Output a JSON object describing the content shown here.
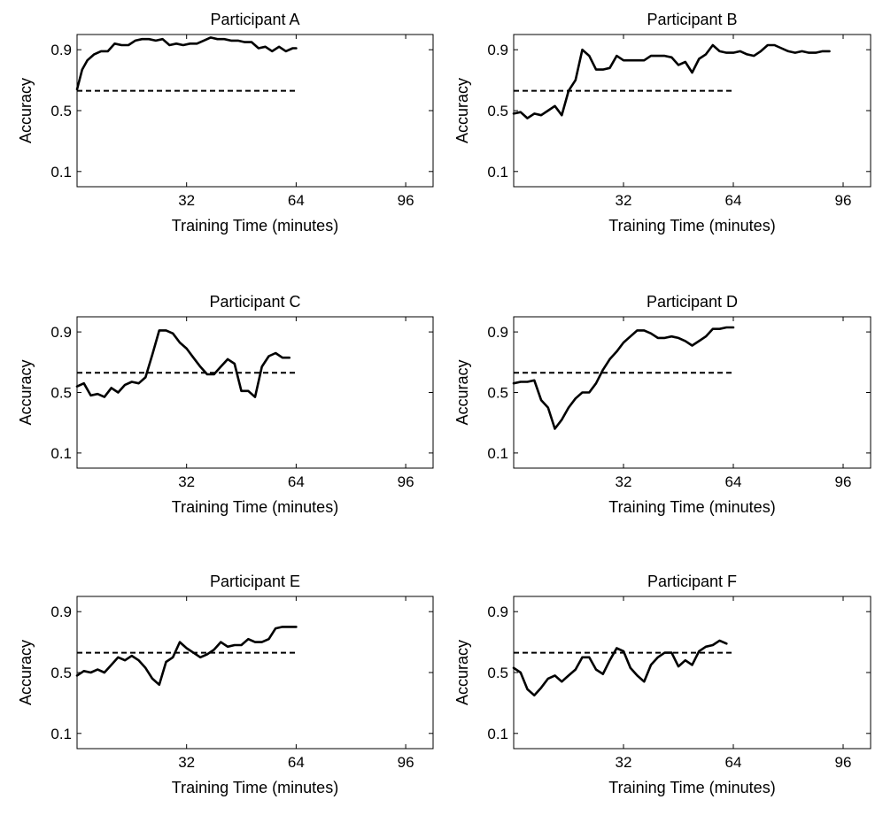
{
  "chart_data": [
    {
      "type": "line",
      "title": "Participant A",
      "xlabel": "Training Time (minutes)",
      "ylabel": "Accuracy",
      "xlim": [
        0,
        104
      ],
      "ylim": [
        0.0,
        1.0
      ],
      "xticks": [
        "32",
        "64",
        "96"
      ],
      "yticks": [
        "0.9",
        "0.5",
        "0.1"
      ],
      "grid": false,
      "threshold": {
        "y": 0.63,
        "x": [
          0,
          64
        ],
        "style": "dashed"
      },
      "series": [
        {
          "x": [
            0,
            1.5,
            3,
            5,
            7,
            9,
            11,
            13,
            15,
            17,
            19,
            21,
            23,
            25,
            27,
            29,
            31,
            33,
            35,
            37,
            39,
            41,
            43,
            45,
            47,
            49,
            51,
            53,
            55,
            57,
            59,
            61,
            63,
            64
          ],
          "values": [
            0.64,
            0.77,
            0.83,
            0.87,
            0.89,
            0.89,
            0.94,
            0.93,
            0.93,
            0.96,
            0.97,
            0.97,
            0.96,
            0.97,
            0.93,
            0.94,
            0.93,
            0.94,
            0.94,
            0.96,
            0.98,
            0.97,
            0.97,
            0.96,
            0.96,
            0.95,
            0.95,
            0.91,
            0.92,
            0.89,
            0.92,
            0.89,
            0.91,
            0.91
          ]
        }
      ]
    },
    {
      "type": "line",
      "title": "Participant B",
      "xlabel": "Training Time (minutes)",
      "ylabel": "Accuracy",
      "xlim": [
        0,
        104
      ],
      "ylim": [
        0.0,
        1.0
      ],
      "xticks": [
        "32",
        "64",
        "96"
      ],
      "yticks": [
        "0.9",
        "0.5",
        "0.1"
      ],
      "grid": false,
      "threshold": {
        "y": 0.63,
        "x": [
          0,
          64
        ],
        "style": "dashed"
      },
      "series": [
        {
          "x": [
            0,
            2,
            4,
            6,
            8,
            10,
            12,
            14,
            16,
            18,
            20,
            22,
            24,
            26,
            28,
            30,
            32,
            34,
            36,
            38,
            40,
            42,
            44,
            46,
            48,
            50,
            52,
            54,
            56,
            58,
            60,
            62,
            64,
            66,
            68,
            70,
            72,
            74,
            76,
            78,
            80,
            82,
            84,
            86,
            88,
            90,
            92
          ],
          "values": [
            0.48,
            0.49,
            0.45,
            0.48,
            0.47,
            0.5,
            0.53,
            0.47,
            0.63,
            0.7,
            0.9,
            0.86,
            0.77,
            0.77,
            0.78,
            0.86,
            0.83,
            0.83,
            0.83,
            0.83,
            0.86,
            0.86,
            0.86,
            0.85,
            0.8,
            0.82,
            0.75,
            0.84,
            0.87,
            0.93,
            0.89,
            0.88,
            0.88,
            0.89,
            0.87,
            0.86,
            0.89,
            0.93,
            0.93,
            0.91,
            0.89,
            0.88,
            0.89,
            0.88,
            0.88,
            0.89,
            0.89
          ]
        }
      ]
    },
    {
      "type": "line",
      "title": "Participant C",
      "xlabel": "Training Time (minutes)",
      "ylabel": "Accuracy",
      "xlim": [
        0,
        104
      ],
      "ylim": [
        0.0,
        1.0
      ],
      "xticks": [
        "32",
        "64",
        "96"
      ],
      "yticks": [
        "0.9",
        "0.5",
        "0.1"
      ],
      "grid": false,
      "threshold": {
        "y": 0.63,
        "x": [
          0,
          64
        ],
        "style": "dashed"
      },
      "series": [
        {
          "x": [
            0,
            2,
            4,
            6,
            8,
            10,
            12,
            14,
            16,
            18,
            20,
            22,
            24,
            26,
            28,
            30,
            32,
            34,
            36,
            38,
            40,
            42,
            44,
            46,
            48,
            50,
            52,
            54,
            56,
            58,
            60,
            62
          ],
          "values": [
            0.54,
            0.56,
            0.48,
            0.49,
            0.47,
            0.53,
            0.5,
            0.55,
            0.57,
            0.56,
            0.6,
            0.75,
            0.91,
            0.91,
            0.89,
            0.83,
            0.79,
            0.73,
            0.67,
            0.62,
            0.62,
            0.67,
            0.72,
            0.69,
            0.51,
            0.51,
            0.47,
            0.67,
            0.74,
            0.76,
            0.73,
            0.73
          ]
        }
      ]
    },
    {
      "type": "line",
      "title": "Participant D",
      "xlabel": "Training Time (minutes)",
      "ylabel": "Accuracy",
      "xlim": [
        0,
        104
      ],
      "ylim": [
        0.0,
        1.0
      ],
      "xticks": [
        "32",
        "64",
        "96"
      ],
      "yticks": [
        "0.9",
        "0.5",
        "0.1"
      ],
      "grid": false,
      "threshold": {
        "y": 0.63,
        "x": [
          0,
          64
        ],
        "style": "dashed"
      },
      "series": [
        {
          "x": [
            0,
            2,
            4,
            6,
            8,
            10,
            12,
            14,
            16,
            18,
            20,
            22,
            24,
            26,
            28,
            30,
            32,
            34,
            36,
            38,
            40,
            42,
            44,
            46,
            48,
            50,
            52,
            54,
            56,
            58,
            60,
            62,
            64
          ],
          "values": [
            0.56,
            0.57,
            0.57,
            0.58,
            0.45,
            0.4,
            0.26,
            0.32,
            0.4,
            0.46,
            0.5,
            0.5,
            0.56,
            0.65,
            0.72,
            0.77,
            0.83,
            0.87,
            0.91,
            0.91,
            0.89,
            0.86,
            0.86,
            0.87,
            0.86,
            0.84,
            0.81,
            0.84,
            0.87,
            0.92,
            0.92,
            0.93,
            0.93
          ]
        }
      ]
    },
    {
      "type": "line",
      "title": "Participant E",
      "xlabel": "Training Time (minutes)",
      "ylabel": "Accuracy",
      "xlim": [
        0,
        104
      ],
      "ylim": [
        0.0,
        1.0
      ],
      "xticks": [
        "32",
        "64",
        "96"
      ],
      "yticks": [
        "0.9",
        "0.5",
        "0.1"
      ],
      "grid": false,
      "threshold": {
        "y": 0.63,
        "x": [
          0,
          64
        ],
        "style": "dashed"
      },
      "series": [
        {
          "x": [
            0,
            2,
            4,
            6,
            8,
            10,
            12,
            14,
            16,
            18,
            20,
            22,
            24,
            26,
            28,
            30,
            32,
            34,
            36,
            38,
            40,
            42,
            44,
            46,
            48,
            50,
            52,
            54,
            56,
            58,
            60,
            62,
            64
          ],
          "values": [
            0.48,
            0.51,
            0.5,
            0.52,
            0.5,
            0.55,
            0.6,
            0.58,
            0.61,
            0.58,
            0.53,
            0.46,
            0.42,
            0.57,
            0.6,
            0.7,
            0.66,
            0.63,
            0.6,
            0.62,
            0.65,
            0.7,
            0.67,
            0.68,
            0.68,
            0.72,
            0.7,
            0.7,
            0.72,
            0.79,
            0.8,
            0.8,
            0.8
          ]
        }
      ]
    },
    {
      "type": "line",
      "title": "Participant F",
      "xlabel": "Training Time (minutes)",
      "ylabel": "Accuracy",
      "xlim": [
        0,
        104
      ],
      "ylim": [
        0.0,
        1.0
      ],
      "xticks": [
        "32",
        "64",
        "96"
      ],
      "yticks": [
        "0.9",
        "0.5",
        "0.1"
      ],
      "grid": false,
      "threshold": {
        "y": 0.63,
        "x": [
          0,
          64
        ],
        "style": "dashed"
      },
      "series": [
        {
          "x": [
            0,
            2,
            4,
            6,
            8,
            10,
            12,
            14,
            16,
            18,
            20,
            22,
            24,
            26,
            28,
            30,
            32,
            34,
            36,
            38,
            40,
            42,
            44,
            46,
            48,
            50,
            52,
            54,
            56,
            58,
            60,
            62
          ],
          "values": [
            0.53,
            0.5,
            0.39,
            0.35,
            0.4,
            0.46,
            0.48,
            0.44,
            0.48,
            0.52,
            0.6,
            0.6,
            0.52,
            0.49,
            0.58,
            0.66,
            0.64,
            0.53,
            0.48,
            0.44,
            0.55,
            0.6,
            0.63,
            0.63,
            0.54,
            0.58,
            0.55,
            0.64,
            0.67,
            0.68,
            0.71,
            0.69
          ]
        }
      ]
    }
  ]
}
